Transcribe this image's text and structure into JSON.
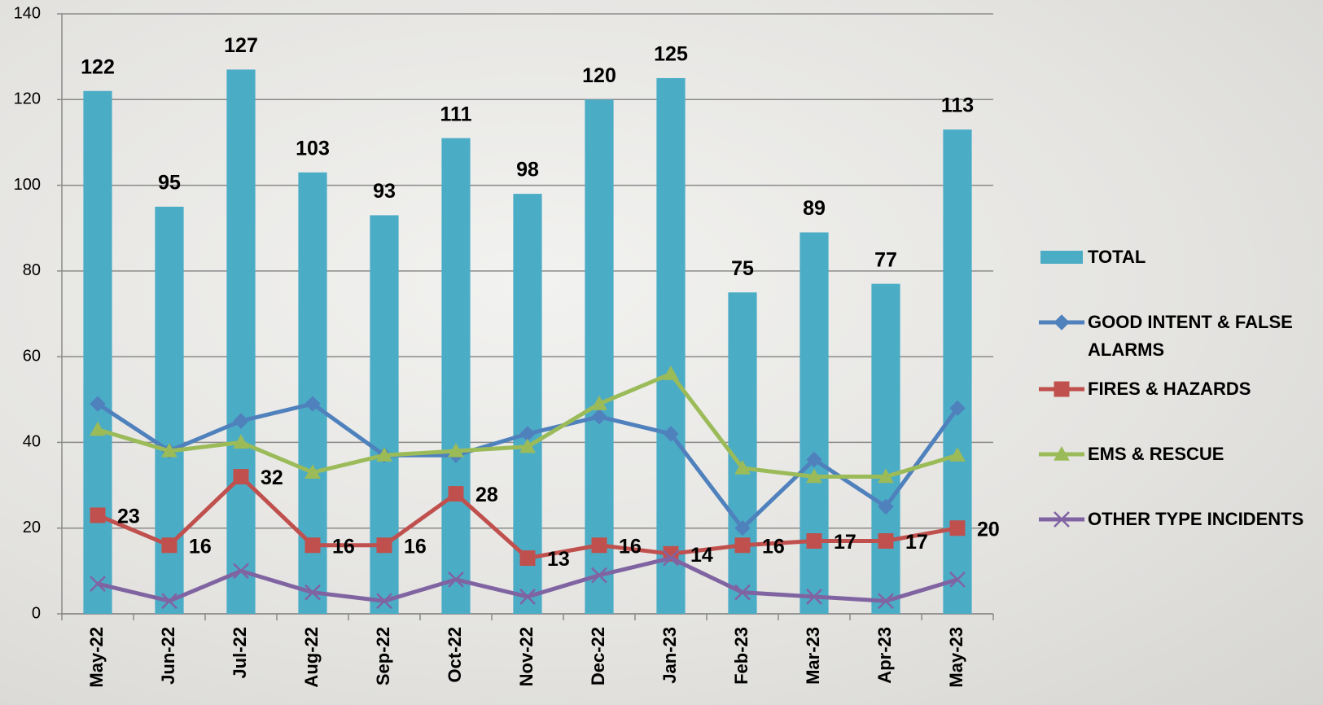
{
  "chart_data": {
    "type": "bar",
    "categories": [
      "May-22",
      "Jun-22",
      "Jul-22",
      "Aug-22",
      "Sep-22",
      "Oct-22",
      "Nov-22",
      "Dec-22",
      "Jan-23",
      "Feb-23",
      "Mar-23",
      "Apr-23",
      "May-23"
    ],
    "series": [
      {
        "name": "TOTAL",
        "type": "bar",
        "color": "#4bacc6",
        "labels": true,
        "values": [
          122,
          95,
          127,
          103,
          93,
          111,
          98,
          120,
          125,
          75,
          89,
          77,
          113
        ]
      },
      {
        "name": "GOOD INTENT & FALSE ALARMS",
        "type": "line",
        "marker": "diamond",
        "color": "#4f81bd",
        "values": [
          49,
          38,
          45,
          49,
          37,
          37,
          42,
          46,
          42,
          20,
          36,
          25,
          48
        ]
      },
      {
        "name": "FIRES & HAZARDS",
        "type": "line",
        "marker": "square",
        "color": "#c0504d",
        "labels": true,
        "values": [
          23,
          16,
          32,
          16,
          16,
          28,
          13,
          16,
          14,
          16,
          17,
          17,
          20
        ]
      },
      {
        "name": "EMS & RESCUE",
        "type": "line",
        "marker": "triangle",
        "color": "#9bbb59",
        "values": [
          43,
          38,
          40,
          33,
          37,
          38,
          39,
          49,
          56,
          34,
          32,
          32,
          37
        ]
      },
      {
        "name": "OTHER TYPE INCIDENTS",
        "type": "line",
        "marker": "x",
        "color": "#8064a2",
        "values": [
          7,
          3,
          10,
          5,
          3,
          8,
          4,
          9,
          13,
          5,
          4,
          3,
          8
        ]
      }
    ],
    "ylim": [
      0,
      140
    ],
    "yticks": [
      0,
      20,
      40,
      60,
      80,
      100,
      120,
      140
    ],
    "grid": true,
    "legend": "right"
  }
}
